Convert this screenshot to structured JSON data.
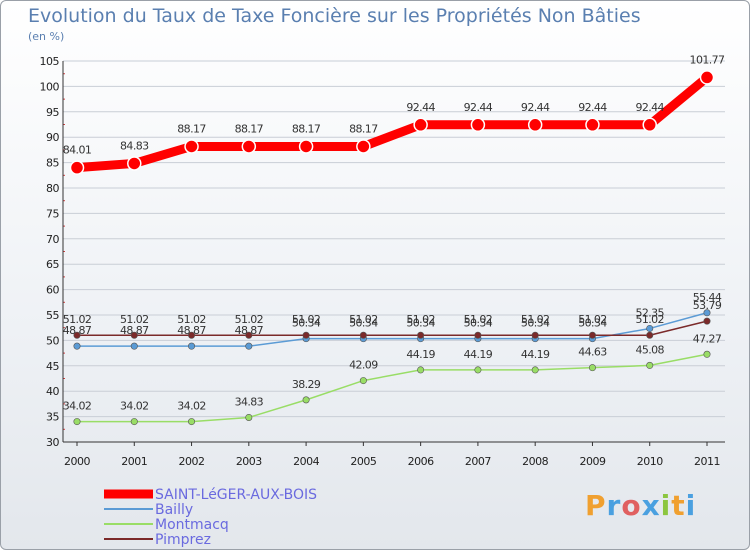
{
  "title": "Evolution du Taux de Taxe Foncière sur les Propriétés Non Bâties",
  "unit": "(en %)",
  "logo": [
    "P",
    "r",
    "o",
    "x",
    "i",
    "t",
    "i"
  ],
  "chart_data": {
    "type": "line",
    "title": "Evolution du Taux de Taxe Foncière sur les Propriétés Non Bâties",
    "ylabel": "(en %)",
    "ylim": [
      30,
      105
    ],
    "yticks": [
      30,
      35,
      40,
      45,
      50,
      55,
      60,
      65,
      70,
      75,
      80,
      85,
      90,
      95,
      100,
      105
    ],
    "categories": [
      "2000",
      "2001",
      "2002",
      "2003",
      "2004",
      "2005",
      "2006",
      "2007",
      "2008",
      "2009",
      "2010",
      "2011"
    ],
    "series": [
      {
        "name": "SAINT-LéGER-AUX-BOIS",
        "color": "#ff0000",
        "values": [
          84.01,
          84.83,
          88.17,
          88.17,
          88.17,
          88.17,
          92.44,
          92.44,
          92.44,
          92.44,
          92.44,
          101.77
        ],
        "labels": [
          "84.01",
          "84.83",
          "88.17",
          "88.17",
          "88.17",
          "88.17",
          "92.44",
          "92.44",
          "92.44",
          "92.44",
          "92.44",
          "101.77"
        ]
      },
      {
        "name": "Bailly",
        "color": "#5b9bd5",
        "values": [
          48.87,
          48.87,
          48.87,
          48.87,
          50.34,
          50.34,
          50.34,
          50.34,
          50.34,
          50.34,
          52.35,
          55.44
        ],
        "labels": [
          "48.87",
          "48.87",
          "48.87",
          "48.87",
          "50.34",
          "50.34",
          "50.34",
          "50.34",
          "50.34",
          "50.34",
          "52.35",
          "55.44"
        ]
      },
      {
        "name": "Montmacq",
        "color": "#99dd66",
        "values": [
          34.02,
          34.02,
          34.02,
          34.83,
          38.29,
          42.09,
          44.19,
          44.19,
          44.19,
          44.63,
          45.08,
          47.27
        ],
        "labels": [
          "34.02",
          "34.02",
          "34.02",
          "34.83",
          "38.29",
          "42.09",
          "44.19",
          "44.19",
          "44.19",
          "44.63",
          "45.08",
          "47.27"
        ]
      },
      {
        "name": "Pimprez",
        "color": "#7b2a2a",
        "values": [
          51.02,
          51.02,
          51.02,
          51.02,
          51.02,
          51.02,
          51.02,
          51.02,
          51.02,
          51.02,
          51.02,
          53.79
        ],
        "labels": [
          "51.02",
          "51.02",
          "51.02",
          "51.02",
          "51.02",
          "51.02",
          "51.02",
          "51.02",
          "51.02",
          "51.02",
          "51.02",
          "53.79"
        ]
      }
    ]
  }
}
